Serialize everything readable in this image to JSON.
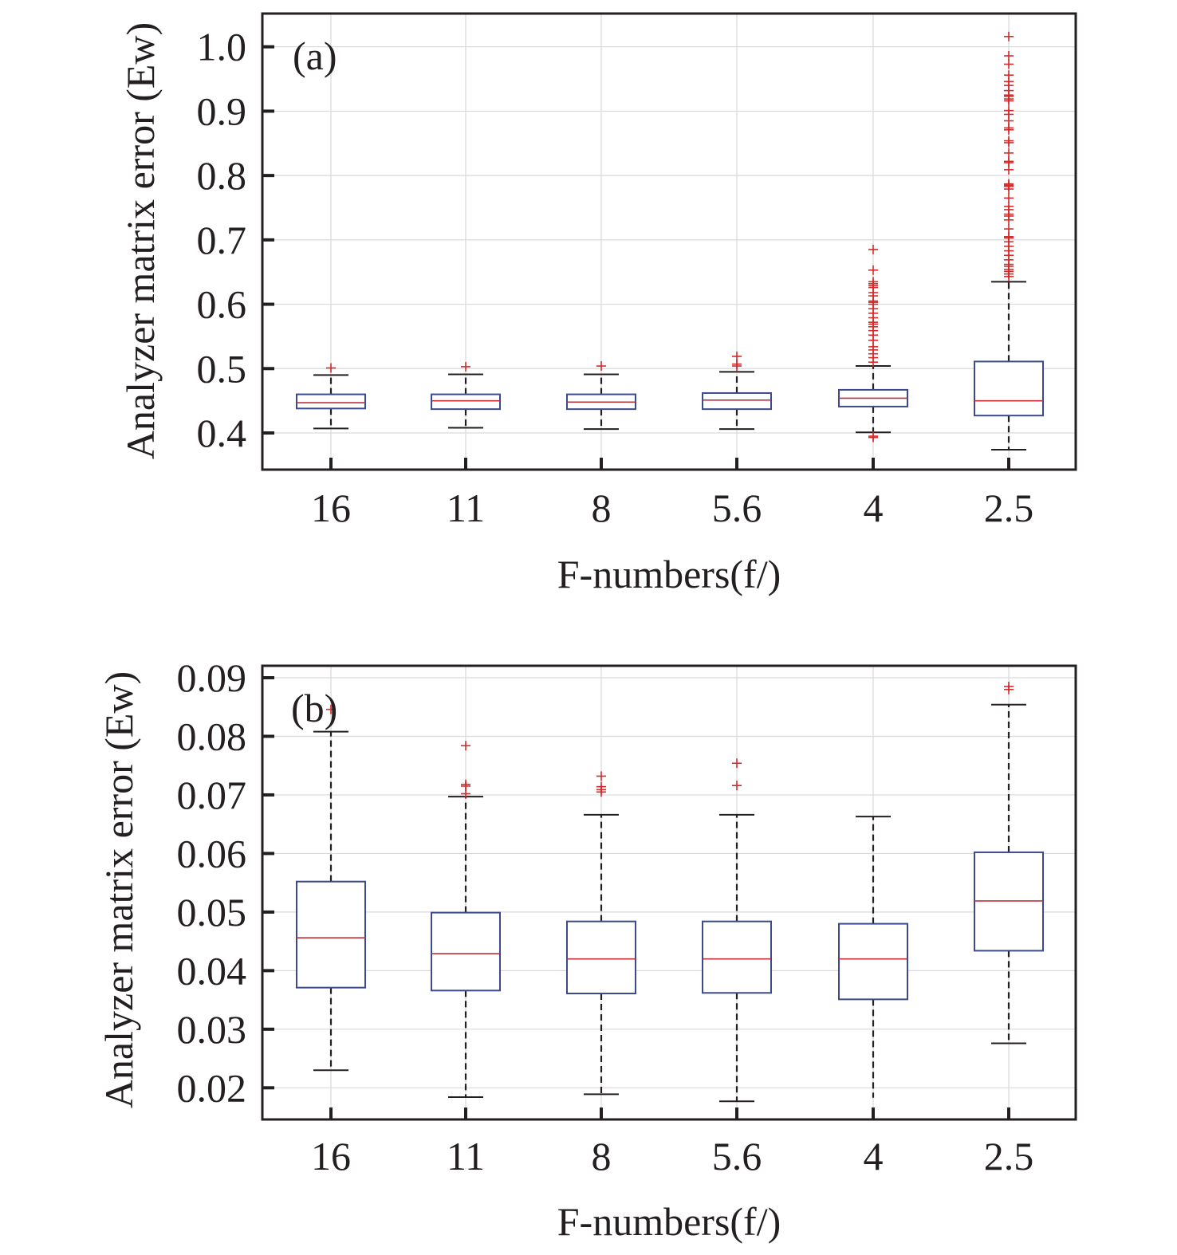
{
  "chart_data": [
    {
      "type": "box",
      "panel_label": "(a)",
      "title": "",
      "xlabel": "F-numbers(f/)",
      "ylabel": "Analyzer matrix error (Ew)",
      "ylim": [
        0.343,
        1.052
      ],
      "yticks": [
        0.4,
        0.5,
        0.6,
        0.7,
        0.8,
        0.9,
        1.0
      ],
      "ytick_labels": [
        "0.4",
        "0.5",
        "0.6",
        "0.7",
        "0.8",
        "0.9",
        "1.0"
      ],
      "grid": true,
      "categories": [
        "16",
        "11",
        "8",
        "5.6",
        "4",
        "2.5"
      ],
      "boxes": [
        {
          "category": "16",
          "whisker_low": 0.407,
          "q1": 0.438,
          "median": 0.447,
          "q3": 0.46,
          "whisker_high": 0.49,
          "outliers": [
            0.501
          ]
        },
        {
          "category": "11",
          "whisker_low": 0.408,
          "q1": 0.437,
          "median": 0.45,
          "q3": 0.46,
          "whisker_high": 0.491,
          "outliers": [
            0.503
          ]
        },
        {
          "category": "8",
          "whisker_low": 0.406,
          "q1": 0.437,
          "median": 0.448,
          "q3": 0.46,
          "whisker_high": 0.491,
          "outliers": [
            0.504
          ]
        },
        {
          "category": "5.6",
          "whisker_low": 0.406,
          "q1": 0.437,
          "median": 0.451,
          "q3": 0.462,
          "whisker_high": 0.495,
          "outliers": [
            0.504,
            0.507,
            0.519
          ]
        },
        {
          "category": "4",
          "whisker_low": 0.401,
          "q1": 0.441,
          "median": 0.454,
          "q3": 0.467,
          "whisker_high": 0.504,
          "outliers": [
            0.393,
            0.395,
            0.51,
            0.517,
            0.523,
            0.529,
            0.534,
            0.544,
            0.552,
            0.559,
            0.565,
            0.569,
            0.572,
            0.579,
            0.586,
            0.593,
            0.6,
            0.603,
            0.605,
            0.613,
            0.618,
            0.626,
            0.629,
            0.632,
            0.635,
            0.653,
            0.685
          ]
        },
        {
          "category": "2.5",
          "whisker_low": 0.374,
          "q1": 0.427,
          "median": 0.45,
          "q3": 0.511,
          "whisker_high": 0.635,
          "outliers": [
            0.643,
            0.647,
            0.651,
            0.654,
            0.659,
            0.662,
            0.669,
            0.676,
            0.683,
            0.69,
            0.697,
            0.703,
            0.705,
            0.717,
            0.731,
            0.737,
            0.74,
            0.747,
            0.752,
            0.765,
            0.779,
            0.783,
            0.785,
            0.787,
            0.809,
            0.82,
            0.822,
            0.835,
            0.851,
            0.854,
            0.871,
            0.874,
            0.885,
            0.895,
            0.901,
            0.916,
            0.919,
            0.923,
            0.925,
            0.932,
            0.94,
            0.946,
            0.956,
            0.973,
            0.986,
            1.016
          ]
        }
      ],
      "colors": {
        "box": "#3b4a8c",
        "median": "#c0303a",
        "outlier": "#d42a2a",
        "whisker": "#231f20",
        "grid": "#d9d9d9"
      }
    },
    {
      "type": "box",
      "panel_label": "(b)",
      "title": "",
      "xlabel": "F-numbers(f/)",
      "ylabel": "Analyzer matrix error (Ew)",
      "ylim": [
        0.0145,
        0.092
      ],
      "yticks": [
        0.02,
        0.03,
        0.04,
        0.05,
        0.06,
        0.07,
        0.08,
        0.09
      ],
      "ytick_labels": [
        "0.02",
        "0.03",
        "0.04",
        "0.05",
        "0.06",
        "0.07",
        "0.08",
        "0.09"
      ],
      "grid": true,
      "categories": [
        "16",
        "11",
        "8",
        "5.6",
        "4",
        "2.5"
      ],
      "boxes": [
        {
          "category": "16",
          "whisker_low": 0.023,
          "q1": 0.0371,
          "median": 0.0456,
          "q3": 0.0552,
          "whisker_high": 0.0808,
          "outliers": [
            0.0846
          ]
        },
        {
          "category": "11",
          "whisker_low": 0.0184,
          "q1": 0.0366,
          "median": 0.0429,
          "q3": 0.0499,
          "whisker_high": 0.0697,
          "outliers": [
            0.0702,
            0.0715,
            0.0718,
            0.0784
          ]
        },
        {
          "category": "8",
          "whisker_low": 0.0189,
          "q1": 0.0361,
          "median": 0.042,
          "q3": 0.0484,
          "whisker_high": 0.0666,
          "outliers": [
            0.0705,
            0.0709,
            0.0714,
            0.0732
          ]
        },
        {
          "category": "5.6",
          "whisker_low": 0.0177,
          "q1": 0.0362,
          "median": 0.042,
          "q3": 0.0484,
          "whisker_high": 0.0666,
          "outliers": [
            0.0716,
            0.0754
          ]
        },
        {
          "category": "4",
          "whisker_low": 0.0183,
          "q1": 0.0351,
          "median": 0.042,
          "q3": 0.048,
          "whisker_high": 0.0663,
          "outliers": []
        },
        {
          "category": "2.5",
          "whisker_low": 0.0276,
          "q1": 0.0434,
          "median": 0.0519,
          "q3": 0.0602,
          "whisker_high": 0.0854,
          "outliers": [
            0.088,
            0.0885
          ]
        }
      ],
      "colors": {
        "box": "#3b4a8c",
        "median": "#c0303a",
        "outlier": "#d42a2a",
        "whisker": "#231f20",
        "grid": "#d9d9d9"
      }
    }
  ]
}
